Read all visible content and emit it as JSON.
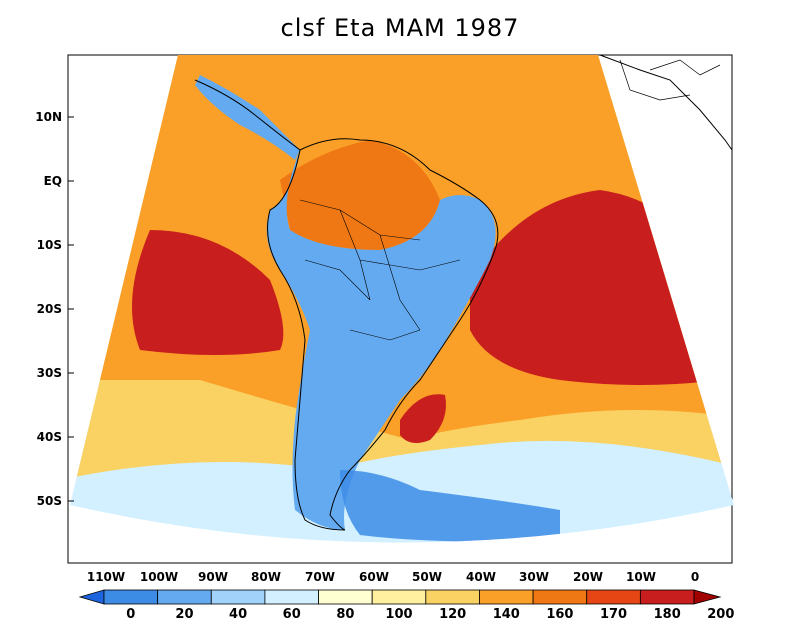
{
  "title": "clsf Eta MAM 1987",
  "lat_ticks": [
    "10N",
    "EQ",
    "10S",
    "20S",
    "30S",
    "40S",
    "50S"
  ],
  "lon_ticks": [
    "110W",
    "100W",
    "90W",
    "80W",
    "70W",
    "60W",
    "50W",
    "40W",
    "30W",
    "20W",
    "10W",
    "0"
  ],
  "colorbar": {
    "labels": [
      "0",
      "20",
      "40",
      "60",
      "80",
      "100",
      "120",
      "140",
      "160",
      "170",
      "180",
      "200"
    ],
    "colors": [
      "#1e64dc",
      "#3c8ce6",
      "#64aaf0",
      "#a0d2fa",
      "#d2f0ff",
      "#ffffd2",
      "#fff0a0",
      "#fad264",
      "#faa028",
      "#f07814",
      "#e64614",
      "#c81e1e",
      "#a00000"
    ]
  },
  "field_colors": {
    "ocean_low": "#d2f0ff",
    "ocean_mid": "#fad264",
    "ocean_high": "#faa028",
    "ocean_max": "#c81e1e",
    "land_dry": "#64aaf0",
    "land_wet": "#f07814"
  }
}
